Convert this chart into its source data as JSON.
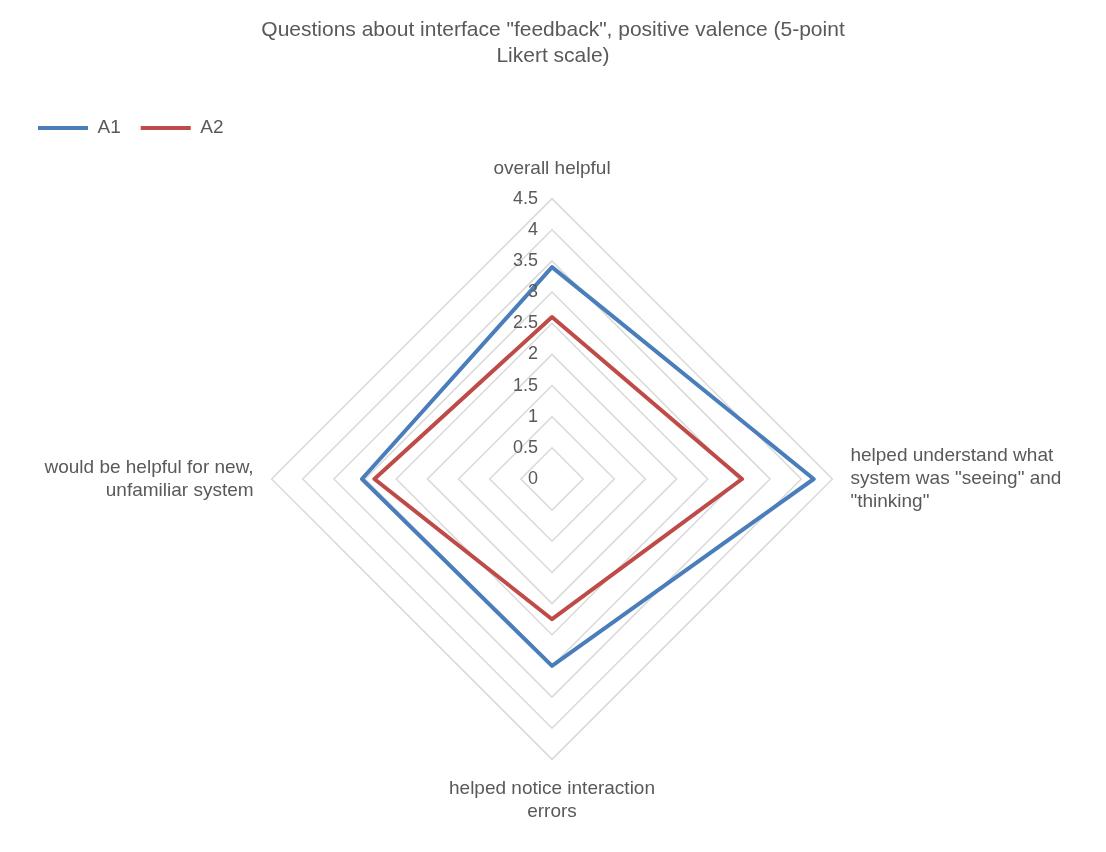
{
  "chart_data": {
    "type": "radar",
    "title": "Questions about interface \"feedback\", positive valence (5-point Likert scale)",
    "categories": [
      "overall helpful",
      "helped understand what system was \"seeing\" and \"thinking\"",
      "helped notice interaction errors",
      "would be helpful for new, unfamiliar system"
    ],
    "series": [
      {
        "name": "A1",
        "color": "#4a7ebb",
        "values": [
          3.4,
          4.2,
          3.0,
          3.05
        ]
      },
      {
        "name": "A2",
        "color": "#be4b48",
        "values": [
          2.6,
          3.05,
          2.25,
          2.85
        ]
      }
    ],
    "ylim": [
      0,
      4.5
    ],
    "yticks": [
      0,
      0.5,
      1,
      1.5,
      2,
      2.5,
      3,
      3.5,
      4,
      4.5
    ],
    "grid": true,
    "legend": "top left",
    "marker": "none"
  }
}
